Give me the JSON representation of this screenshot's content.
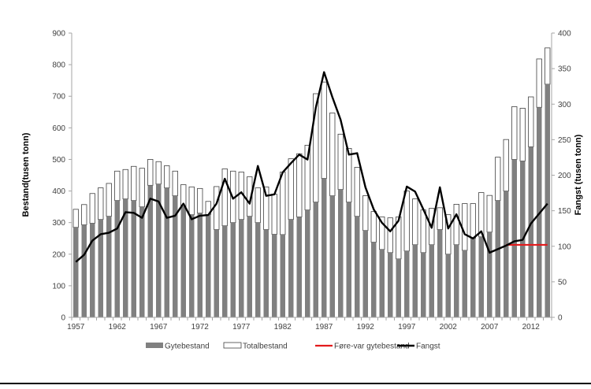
{
  "chart_data": {
    "type": "bar",
    "title": "",
    "xlabel": "",
    "ylabel": "Bestand(tusen tonn)",
    "y2label": "Fangst (tusen tonn)",
    "ylim": [
      0,
      900
    ],
    "y2lim": [
      0,
      400
    ],
    "yticks": [
      0,
      100,
      200,
      300,
      400,
      500,
      600,
      700,
      800,
      900
    ],
    "y2ticks": [
      0,
      50,
      100,
      150,
      200,
      250,
      300,
      350,
      400
    ],
    "xtick_labels": [
      "1957",
      "1962",
      "1967",
      "1972",
      "1977",
      "1982",
      "1987",
      "1992",
      "1997",
      "2002",
      "2007",
      "2012"
    ],
    "grid": false,
    "legend_position": "bottom",
    "categories": [
      1957,
      1958,
      1959,
      1960,
      1961,
      1962,
      1963,
      1964,
      1965,
      1966,
      1967,
      1968,
      1969,
      1970,
      1971,
      1972,
      1973,
      1974,
      1975,
      1976,
      1977,
      1978,
      1979,
      1980,
      1981,
      1982,
      1983,
      1984,
      1985,
      1986,
      1987,
      1988,
      1989,
      1990,
      1991,
      1992,
      1993,
      1994,
      1995,
      1996,
      1997,
      1998,
      1999,
      2000,
      2001,
      2002,
      2003,
      2004,
      2005,
      2006,
      2007,
      2008,
      2009,
      2010,
      2011,
      2012,
      2013,
      2014
    ],
    "series": [
      {
        "name": "Gytebestand",
        "type": "bar",
        "axis": "left",
        "color": "#808080",
        "values": [
          285,
          293,
          298,
          310,
          320,
          370,
          375,
          370,
          350,
          418,
          422,
          410,
          385,
          350,
          325,
          330,
          325,
          278,
          290,
          300,
          310,
          320,
          300,
          278,
          263,
          262,
          310,
          318,
          340,
          365,
          440,
          385,
          405,
          365,
          320,
          275,
          238,
          215,
          205,
          185,
          210,
          230,
          205,
          230,
          278,
          200,
          230,
          212,
          250,
          255,
          270,
          370,
          400,
          500,
          495,
          540,
          665,
          738
        ],
        "ylim": [
          0,
          900
        ]
      },
      {
        "name": "Totalbestand",
        "type": "bar",
        "axis": "left",
        "color": "#ffffff",
        "values": [
          342,
          357,
          392,
          410,
          424,
          463,
          468,
          478,
          472,
          500,
          493,
          480,
          463,
          420,
          413,
          408,
          367,
          414,
          470,
          463,
          460,
          445,
          410,
          413,
          390,
          460,
          502,
          518,
          545,
          708,
          745,
          647,
          580,
          535,
          475,
          385,
          335,
          318,
          315,
          318,
          400,
          375,
          340,
          345,
          347,
          325,
          358,
          360,
          360,
          395,
          386,
          507,
          563,
          667,
          662,
          698,
          818,
          853
        ]
      },
      {
        "name": "Føre-var gytebestand",
        "type": "line",
        "axis": "right",
        "color": "#e31a1c",
        "x": [
          2009,
          2014
        ],
        "values": [
          102,
          102
        ]
      },
      {
        "name": "Fangst",
        "type": "line",
        "axis": "right",
        "color": "#000000",
        "values": [
          78,
          88,
          108,
          117,
          119,
          125,
          148,
          147,
          140,
          167,
          163,
          140,
          143,
          160,
          138,
          143,
          144,
          160,
          195,
          167,
          176,
          160,
          213,
          171,
          173,
          204,
          217,
          229,
          222,
          295,
          345,
          310,
          278,
          229,
          231,
          183,
          152,
          133,
          121,
          136,
          184,
          177,
          152,
          126,
          183,
          125,
          145,
          117,
          111,
          121,
          91,
          96,
          101,
          107,
          109,
          132,
          146,
          160
        ],
        "ylim": [
          0,
          400
        ]
      }
    ]
  },
  "legend": {
    "items": [
      {
        "label": "Gytebestand",
        "swatch": "gray-fill"
      },
      {
        "label": "Totalbestand",
        "swatch": "white-outline"
      },
      {
        "label": "Føre-var gytebestand",
        "swatch": "red-line"
      },
      {
        "label": "Fangst",
        "swatch": "black-line"
      }
    ]
  },
  "colors": {
    "gytebestand": "#808080",
    "totalbestand_fill": "#ffffff",
    "totalbestand_stroke": "#404040",
    "foreVar": "#e31a1c",
    "fangst": "#000000",
    "axis": "#a6a6a6",
    "tick_text": "#404040"
  }
}
